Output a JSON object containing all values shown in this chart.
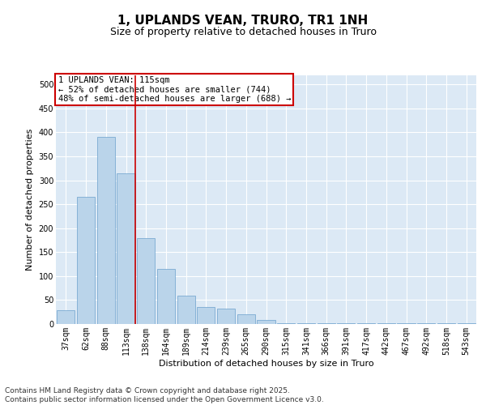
{
  "title": "1, UPLANDS VEAN, TRURO, TR1 1NH",
  "subtitle": "Size of property relative to detached houses in Truro",
  "xlabel": "Distribution of detached houses by size in Truro",
  "ylabel": "Number of detached properties",
  "categories": [
    "37sqm",
    "62sqm",
    "88sqm",
    "113sqm",
    "138sqm",
    "164sqm",
    "189sqm",
    "214sqm",
    "239sqm",
    "265sqm",
    "290sqm",
    "315sqm",
    "341sqm",
    "366sqm",
    "391sqm",
    "417sqm",
    "442sqm",
    "467sqm",
    "492sqm",
    "518sqm",
    "543sqm"
  ],
  "values": [
    28,
    265,
    390,
    315,
    180,
    115,
    60,
    35,
    32,
    20,
    8,
    2,
    1,
    1,
    1,
    1,
    1,
    1,
    1,
    1,
    2
  ],
  "bar_color": "#bad4ea",
  "bar_edge_color": "#6aa0cc",
  "highlight_index": 3,
  "highlight_line_color": "#cc0000",
  "annotation_text": "1 UPLANDS VEAN: 115sqm\n← 52% of detached houses are smaller (744)\n48% of semi-detached houses are larger (688) →",
  "annotation_box_color": "#ffffff",
  "annotation_box_edge_color": "#cc0000",
  "ylim": [
    0,
    520
  ],
  "yticks": [
    0,
    50,
    100,
    150,
    200,
    250,
    300,
    350,
    400,
    450,
    500
  ],
  "footer": "Contains HM Land Registry data © Crown copyright and database right 2025.\nContains public sector information licensed under the Open Government Licence v3.0.",
  "plot_background": "#dce9f5",
  "fig_background": "#ffffff",
  "grid_color": "#ffffff",
  "title_fontsize": 11,
  "subtitle_fontsize": 9,
  "axis_label_fontsize": 8,
  "tick_fontsize": 7,
  "footer_fontsize": 6.5,
  "annotation_fontsize": 7.5
}
